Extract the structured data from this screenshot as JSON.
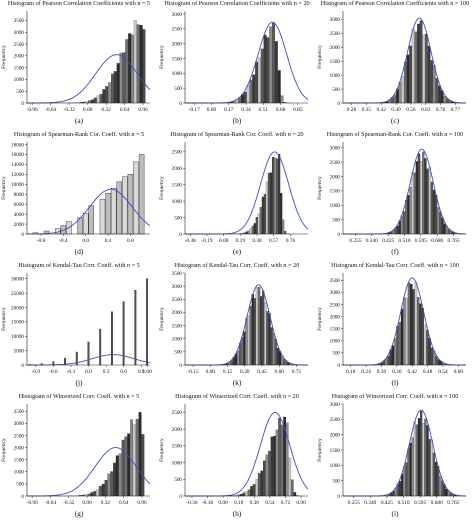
{
  "chart_data": [
    {
      "id": "a",
      "type": "bar",
      "title": "Histogram of Pearson Correlation  Coefficients with n = 5",
      "label": "(a)",
      "ylabel": "Frequency",
      "xticks": [
        "-0.96",
        "-0.64",
        "-0.32",
        "0.00",
        "0.32",
        "0.64",
        "0.96"
      ],
      "xlim": [
        -1.05,
        1.08
      ],
      "yticks": [
        "0",
        "500",
        "1000",
        "1500",
        "2000",
        "2500",
        "3000",
        "3500"
      ],
      "ylim": [
        0,
        3900
      ],
      "bins": {
        "start": -0.98,
        "end": 1.0,
        "count": 40,
        "dist": "skewleft",
        "peak": 3700,
        "mode": 0.93,
        "spread": 0.5
      },
      "fit": {
        "mean": 0.5,
        "sd": 0.36,
        "peak": 2050
      }
    },
    {
      "id": "b",
      "type": "bar",
      "title": "Histogram of Pearson Correlation  Coefficients with n = 20",
      "label": "(b)",
      "ylabel": "Frequency",
      "xticks": [
        "-0.17",
        "0.00",
        "0.17",
        "0.34",
        "0.51",
        "0.68",
        "0.85"
      ],
      "xlim": [
        -0.26,
        0.95
      ],
      "yticks": [
        "0",
        "500",
        "1000",
        "1500",
        "2000",
        "2500",
        "3000"
      ],
      "ylim": [
        0,
        3100
      ],
      "bins": {
        "start": -0.18,
        "end": 0.93,
        "count": 40,
        "dist": "skewleft",
        "peak": 2800,
        "mode": 0.62,
        "spread": 0.22
      },
      "fit": {
        "mean": 0.6,
        "sd": 0.14,
        "peak": 2720
      }
    },
    {
      "id": "c",
      "type": "bar",
      "title": "Histogram of Pearson Correlation  Coefficients with n = 100",
      "label": "(c)",
      "ylabel": "Frequency",
      "xticks": [
        "0.28",
        "0.35",
        "0.42",
        "0.49",
        "0.56",
        "0.63",
        "0.70",
        "0.77"
      ],
      "xlim": [
        0.24,
        0.82
      ],
      "yticks": [
        "0",
        "500",
        "1000",
        "1500",
        "2000",
        "2500",
        "3000"
      ],
      "ylim": [
        0,
        3300
      ],
      "bins": {
        "start": 0.33,
        "end": 0.8,
        "count": 38,
        "dist": "normal",
        "peak": 3050,
        "mode": 0.6,
        "spread": 0.055
      },
      "fit": {
        "mean": 0.6,
        "sd": 0.055,
        "peak": 3050
      }
    },
    {
      "id": "d",
      "type": "bar",
      "title": "Histogram of Spearman-Rank Cor. Coeff. with n = 5",
      "label": "(d)",
      "ylabel": "Frequency",
      "xticks": [
        "-0.8",
        "-0.4",
        "0.0",
        "0.4",
        "0.8"
      ],
      "xlim": [
        -1.05,
        1.15
      ],
      "yticks": [
        "0",
        "2000",
        "4000",
        "6000",
        "8000",
        "10000",
        "12000",
        "14000",
        "16000",
        "18000"
      ],
      "ylim": [
        0,
        18500
      ],
      "bars": {
        "x": [
          -0.9,
          -0.7,
          -0.5,
          -0.4,
          -0.3,
          -0.1,
          0.0,
          0.1,
          0.3,
          0.4,
          0.5,
          0.6,
          0.7,
          0.8,
          0.9,
          1.0
        ],
        "values": [
          250,
          600,
          1100,
          1700,
          2500,
          3300,
          4200,
          5700,
          7000,
          8200,
          9200,
          10500,
          11500,
          12000,
          14500,
          16000
        ],
        "width": 0.09
      },
      "fit": {
        "mean": 0.45,
        "sd": 0.38,
        "peak": 9000
      }
    },
    {
      "id": "e",
      "type": "bar",
      "title": "Histogram of Spearman-Rank Cor. Coeff. with n = 20",
      "label": "(e)",
      "ylabel": "Frequency",
      "xticks": [
        "-0.38",
        "-0.19",
        "0.00",
        "0.19",
        "0.38",
        "0.57",
        "0.76"
      ],
      "xlim": [
        -0.44,
        0.96
      ],
      "yticks": [
        "0",
        "500",
        "1000",
        "1500",
        "2000",
        "2500"
      ],
      "ylim": [
        0,
        2800
      ],
      "bins": {
        "start": -0.05,
        "end": 0.92,
        "count": 42,
        "dist": "skewleft",
        "peak": 2600,
        "mode": 0.62,
        "spread": 0.2
      },
      "fit": {
        "mean": 0.58,
        "sd": 0.16,
        "peak": 2500
      }
    },
    {
      "id": "f",
      "type": "bar",
      "title": "Histogram of Spearman-Rank Cor. Coeff. with n = 100",
      "label": "(f)",
      "ylabel": "Frequency",
      "xticks": [
        "0.255",
        "0.340",
        "0.425",
        "0.510",
        "0.595",
        "0.680",
        "0.765"
      ],
      "xlim": [
        0.19,
        0.83
      ],
      "yticks": [
        "0",
        "500",
        "1000",
        "1500",
        "2000",
        "2500",
        "3000"
      ],
      "ylim": [
        0,
        3200
      ],
      "bins": {
        "start": 0.38,
        "end": 0.78,
        "count": 36,
        "dist": "normal",
        "peak": 2950,
        "mode": 0.6,
        "spread": 0.06
      },
      "fit": {
        "mean": 0.6,
        "sd": 0.06,
        "peak": 2950
      }
    },
    {
      "id": "j",
      "type": "bar",
      "title": "Histogram of Kendal-Tau Corr. Coeff. with n = 5",
      "label": "(j)",
      "ylabel": "Frequency",
      "xticks": [
        "-0.9",
        "-0.6",
        "-0.3",
        "0.0",
        "0.3",
        "0.6",
        "0.9",
        "1.00"
      ],
      "xlim": [
        -1.05,
        1.05
      ],
      "yticks": [
        "0",
        "5000",
        "10000",
        "15000",
        "20000",
        "25000",
        "30000"
      ],
      "ylim": [
        0,
        32000
      ],
      "bars": {
        "x": [
          -1.0,
          -0.8,
          -0.6,
          -0.4,
          -0.2,
          0.0,
          0.2,
          0.4,
          0.6,
          0.8,
          1.0
        ],
        "values": [
          200,
          500,
          1200,
          2400,
          4500,
          8000,
          12500,
          18500,
          22000,
          26000,
          30000
        ],
        "width": 0.025
      },
      "fit": {
        "mean": 0.42,
        "sd": 0.36,
        "peak": 3600
      }
    },
    {
      "id": "k",
      "type": "bar",
      "title": "Histogram of Kendal-Tau Corr. Coeff. with n = 20",
      "label": "(k)",
      "ylabel": "Frequency",
      "xticks": [
        "-0.15",
        "0.00",
        "0.15",
        "0.30",
        "0.45",
        "0.60",
        "0.75"
      ],
      "xlim": [
        -0.22,
        0.85
      ],
      "yticks": [
        "0",
        "500",
        "1000",
        "1500",
        "2000",
        "2500",
        "3000",
        "3500"
      ],
      "ylim": [
        0,
        3500
      ],
      "bins": {
        "start": 0.05,
        "end": 0.78,
        "count": 40,
        "dist": "normal",
        "peak": 3100,
        "mode": 0.42,
        "spread": 0.1
      },
      "fit": {
        "mean": 0.42,
        "sd": 0.1,
        "peak": 3050
      }
    },
    {
      "id": "l",
      "type": "bar",
      "title": "Histogram of Kendal-Tau Corr. Coeff. with n = 100",
      "label": "(l)",
      "ylabel": "Frequency",
      "xticks": [
        "0.18",
        "0.24",
        "0.30",
        "0.36",
        "0.42",
        "0.48",
        "0.54",
        "0.60"
      ],
      "xlim": [
        0.15,
        0.63
      ],
      "yticks": [
        "0",
        "500",
        "1000",
        "1500",
        "2000",
        "2500",
        "3000",
        "3500"
      ],
      "ylim": [
        0,
        3800
      ],
      "bins": {
        "start": 0.26,
        "end": 0.6,
        "count": 38,
        "dist": "normal",
        "peak": 3600,
        "mode": 0.42,
        "spread": 0.045
      },
      "fit": {
        "mean": 0.42,
        "sd": 0.045,
        "peak": 3600
      }
    },
    {
      "id": "g",
      "type": "bar",
      "title": "Histogram of Winsorized Corr. Coeff. with n = 5",
      "label": "(g)",
      "ylabel": "Frequency",
      "xticks": [
        "-0.96",
        "-0.64",
        "-0.32",
        "0.00",
        "0.32",
        "0.64",
        "0.96"
      ],
      "xlim": [
        -1.05,
        1.1
      ],
      "yticks": [
        "0",
        "500",
        "1000",
        "1500",
        "2000",
        "2500",
        "3000",
        "3500"
      ],
      "ylim": [
        0,
        3800
      ],
      "bins": {
        "start": -0.98,
        "end": 1.0,
        "count": 40,
        "dist": "skewleft",
        "peak": 3500,
        "mode": 0.93,
        "spread": 0.5
      },
      "fit": {
        "mean": 0.5,
        "sd": 0.36,
        "peak": 2000
      }
    },
    {
      "id": "h",
      "type": "bar",
      "title": "Histogram of Winsorized Corr. Coeff. with n = 20",
      "label": "(h)",
      "ylabel": "Frequency",
      "xticks": [
        "-0.36",
        "-0.18",
        "0.00",
        "0.18",
        "0.36",
        "0.54",
        "0.72",
        "0.90"
      ],
      "xlim": [
        -0.44,
        0.98
      ],
      "yticks": [
        "0",
        "500",
        "1000",
        "1500",
        "2000",
        "2500"
      ],
      "ylim": [
        0,
        2750
      ],
      "bins": {
        "start": -0.3,
        "end": 0.93,
        "count": 42,
        "dist": "skewleft",
        "peak": 2500,
        "mode": 0.72,
        "spread": 0.28
      },
      "fit": {
        "mean": 0.6,
        "sd": 0.17,
        "peak": 2500
      }
    },
    {
      "id": "i",
      "type": "bar",
      "title": "Histogram of Winsorized Corr. Coeff. with n = 100",
      "label": "(i)",
      "ylabel": "Frequency",
      "xticks": [
        "0.255",
        "0.340",
        "0.425",
        "0.510",
        "0.595",
        "0.680",
        "0.765"
      ],
      "xlim": [
        0.2,
        0.83
      ],
      "yticks": [
        "0",
        "500",
        "1000",
        "1500",
        "2000",
        "2500",
        "3000"
      ],
      "ylim": [
        0,
        3000
      ],
      "bins": {
        "start": 0.4,
        "end": 0.79,
        "count": 36,
        "dist": "normal",
        "peak": 2800,
        "mode": 0.6,
        "spread": 0.06
      },
      "fit": {
        "mean": 0.6,
        "sd": 0.06,
        "peak": 2800
      }
    }
  ],
  "colors": {
    "axis": "#222222",
    "bar_dark": "#3a3a3a",
    "bar_mid": "#8a8a8a",
    "bar_light": "#c8c8c8",
    "fit_curve": "#3b4fc4",
    "text": "#111111"
  }
}
